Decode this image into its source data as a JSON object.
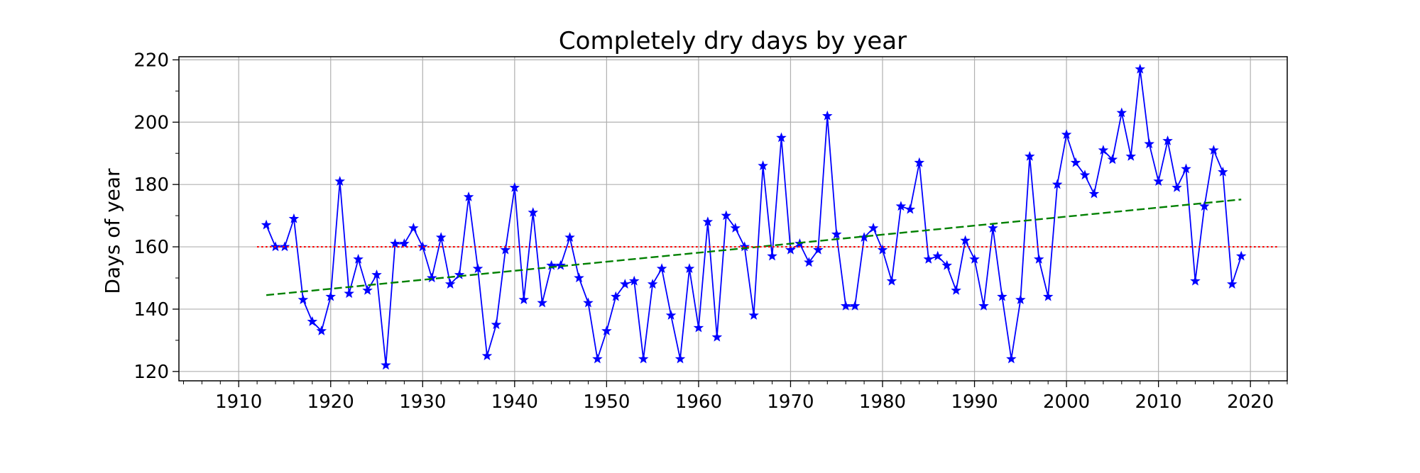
{
  "chart_data": {
    "type": "line",
    "title": "Completely dry days by year",
    "xlabel": "",
    "ylabel": "Days of year",
    "xlim": [
      1903.5,
      2024
    ],
    "ylim": [
      117,
      221
    ],
    "x_major_ticks": [
      1910,
      1920,
      1930,
      1940,
      1950,
      1960,
      1970,
      1980,
      1990,
      2000,
      2010,
      2020
    ],
    "y_major_ticks": [
      120,
      140,
      160,
      180,
      200,
      220
    ],
    "grid": true,
    "series": [
      {
        "marker": "star",
        "color": "#0000ff",
        "x": [
          1913,
          1914,
          1915,
          1916,
          1917,
          1918,
          1919,
          1920,
          1921,
          1922,
          1923,
          1924,
          1925,
          1926,
          1927,
          1928,
          1929,
          1930,
          1931,
          1932,
          1933,
          1934,
          1935,
          1936,
          1937,
          1938,
          1939,
          1940,
          1941,
          1942,
          1943,
          1944,
          1945,
          1946,
          1947,
          1948,
          1949,
          1950,
          1951,
          1952,
          1953,
          1954,
          1955,
          1956,
          1957,
          1958,
          1959,
          1960,
          1961,
          1962,
          1963,
          1964,
          1965,
          1966,
          1967,
          1968,
          1969,
          1970,
          1971,
          1972,
          1973,
          1974,
          1975,
          1976,
          1977,
          1978,
          1979,
          1980,
          1981,
          1982,
          1983,
          1984,
          1985,
          1986,
          1987,
          1988,
          1989,
          1990,
          1991,
          1992,
          1993,
          1994,
          1995,
          1996,
          1997,
          1998,
          1999,
          2000,
          2001,
          2002,
          2003,
          2004,
          2005,
          2006,
          2007,
          2008,
          2009,
          2010,
          2011,
          2012,
          2013,
          2014,
          2015,
          2016,
          2017,
          2018,
          2019
        ],
        "y": [
          167,
          160,
          160,
          169,
          143,
          136,
          133,
          144,
          181,
          145,
          156,
          146,
          151,
          122,
          161,
          161,
          166,
          160,
          150,
          163,
          148,
          151,
          176,
          153,
          125,
          135,
          159,
          179,
          143,
          171,
          142,
          154,
          154,
          163,
          150,
          142,
          124,
          133,
          144,
          148,
          149,
          124,
          148,
          153,
          138,
          124,
          153,
          134,
          168,
          131,
          170,
          166,
          160,
          138,
          186,
          157,
          195,
          159,
          161,
          155,
          159,
          202,
          164,
          141,
          141,
          163,
          166,
          159,
          149,
          173,
          172,
          187,
          156,
          157,
          154,
          146,
          162,
          156,
          141,
          166,
          144,
          124,
          143,
          189,
          156,
          144,
          180,
          196,
          187,
          183,
          177,
          191,
          188,
          203,
          189,
          217,
          193,
          181,
          194,
          179,
          185,
          149,
          173,
          191,
          184,
          148,
          157
        ]
      },
      {
        "style": "dashed",
        "color": "#008000",
        "x": [
          1913,
          2019
        ],
        "y": [
          144.5,
          175.2
        ]
      },
      {
        "style": "dotted",
        "color": "#ff0000",
        "x": [
          1912,
          2023
        ],
        "y": [
          160,
          160
        ]
      }
    ]
  }
}
